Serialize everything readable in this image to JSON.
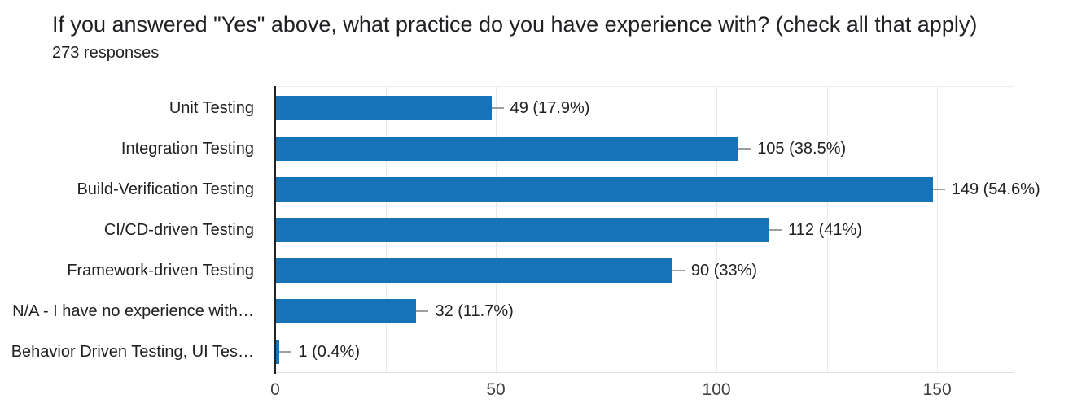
{
  "header": {
    "title": "If you answered \"Yes\" above, what practice do you have experience with? (check all that apply)",
    "responses": "273 responses"
  },
  "chart_data": {
    "type": "bar",
    "orientation": "horizontal",
    "title": "If you answered \"Yes\" above, what practice do you have experience with? (check all that apply)",
    "subtitle": "273 responses",
    "categories": [
      "Unit Testing",
      "Integration Testing",
      "Build-Verification Testing",
      "CI/CD-driven Testing",
      "Framework-driven Testing",
      "N/A - I have no experience with…",
      "Behavior Driven Testing, UI Tes…"
    ],
    "values": [
      49,
      105,
      149,
      112,
      90,
      32,
      1
    ],
    "value_labels": [
      "49 (17.9%)",
      "105 (38.5%)",
      "149 (54.6%)",
      "112 (41%)",
      "90 (33%)",
      "32 (11.7%)",
      "1 (0.4%)"
    ],
    "percentages": [
      17.9,
      38.5,
      54.6,
      41,
      33,
      11.7,
      0.4
    ],
    "total_responses": 273,
    "xlabel": "",
    "ylabel": "",
    "xlim": [
      0,
      167.5
    ],
    "xticks": [
      0,
      50,
      100,
      150
    ],
    "xtick_labels": [
      "0",
      "50",
      "100",
      "150"
    ],
    "minor_grid_step": 25,
    "grid": "vertical-only",
    "legend": "none",
    "colors": {
      "bar": "#1673b8",
      "axis_line": "#212121",
      "gridline": "#e9e9e9",
      "leader_line": "#9e9e9e",
      "text": "#202124",
      "tick_text": "#3c4043",
      "background": "#ffffff"
    }
  }
}
